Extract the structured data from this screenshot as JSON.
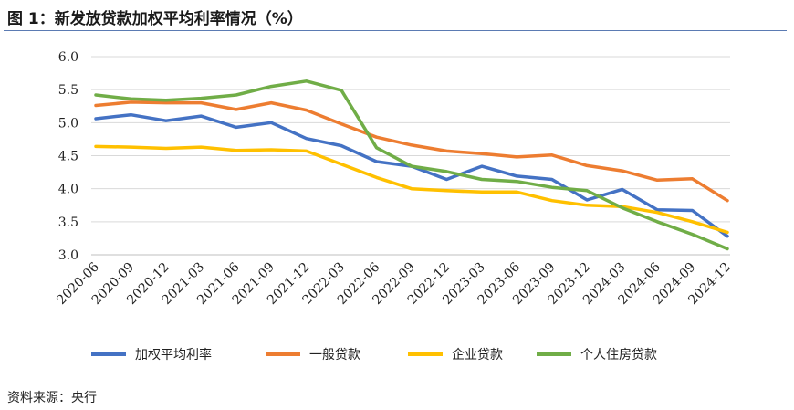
{
  "header": {
    "title": "图 1：新发放贷款加权平均利率情况（%）"
  },
  "footer": {
    "source": "资料来源：央行"
  },
  "chart_data": {
    "type": "line",
    "title": "",
    "xlabel": "",
    "ylabel": "",
    "ylim": [
      3.0,
      6.0
    ],
    "yticks": [
      "3.0",
      "3.5",
      "4.0",
      "4.5",
      "5.0",
      "5.5",
      "6.0"
    ],
    "grid": true,
    "legend_position": "bottom",
    "categories": [
      "2020-06",
      "2020-09",
      "2020-12",
      "2021-03",
      "2021-06",
      "2021-09",
      "2021-12",
      "2022-03",
      "2022-06",
      "2022-09",
      "2022-12",
      "2023-03",
      "2023-06",
      "2023-09",
      "2023-12",
      "2024-03",
      "2024-06",
      "2024-09",
      "2024-12"
    ],
    "x": [
      "2020-06",
      "2020-09",
      "2020-12",
      "2021-03",
      "2021-06",
      "2021-09",
      "2021-12",
      "2022-03",
      "2022-06",
      "2022-09",
      "2022-12",
      "2023-03",
      "2023-06",
      "2023-09",
      "2023-12",
      "2024-03",
      "2024-06",
      "2024-09",
      "2024-12"
    ],
    "series": [
      {
        "name": "加权平均利率",
        "color": "#4472c4",
        "values": [
          5.06,
          5.12,
          5.03,
          5.1,
          4.93,
          5.0,
          4.76,
          4.65,
          4.41,
          4.34,
          4.14,
          4.34,
          4.19,
          4.14,
          3.83,
          3.99,
          3.68,
          3.67,
          3.28
        ]
      },
      {
        "name": "一般贷款",
        "color": "#ed7d31",
        "values": [
          5.26,
          5.31,
          5.3,
          5.3,
          5.2,
          5.3,
          5.19,
          4.98,
          4.78,
          4.66,
          4.57,
          4.53,
          4.48,
          4.51,
          4.35,
          4.27,
          4.13,
          4.15,
          3.82
        ]
      },
      {
        "name": "企业贷款",
        "color": "#ffc000",
        "values": [
          4.64,
          4.63,
          4.61,
          4.63,
          4.58,
          4.59,
          4.57,
          4.37,
          4.17,
          4.0,
          3.97,
          3.95,
          3.95,
          3.82,
          3.75,
          3.73,
          3.64,
          3.5,
          3.34
        ]
      },
      {
        "name": "个人住房贷款",
        "color": "#70ad47",
        "values": [
          5.42,
          5.36,
          5.34,
          5.37,
          5.42,
          5.55,
          5.63,
          5.49,
          4.62,
          4.34,
          4.26,
          4.14,
          4.11,
          4.02,
          3.97,
          3.71,
          3.5,
          3.31,
          3.09
        ]
      }
    ]
  }
}
